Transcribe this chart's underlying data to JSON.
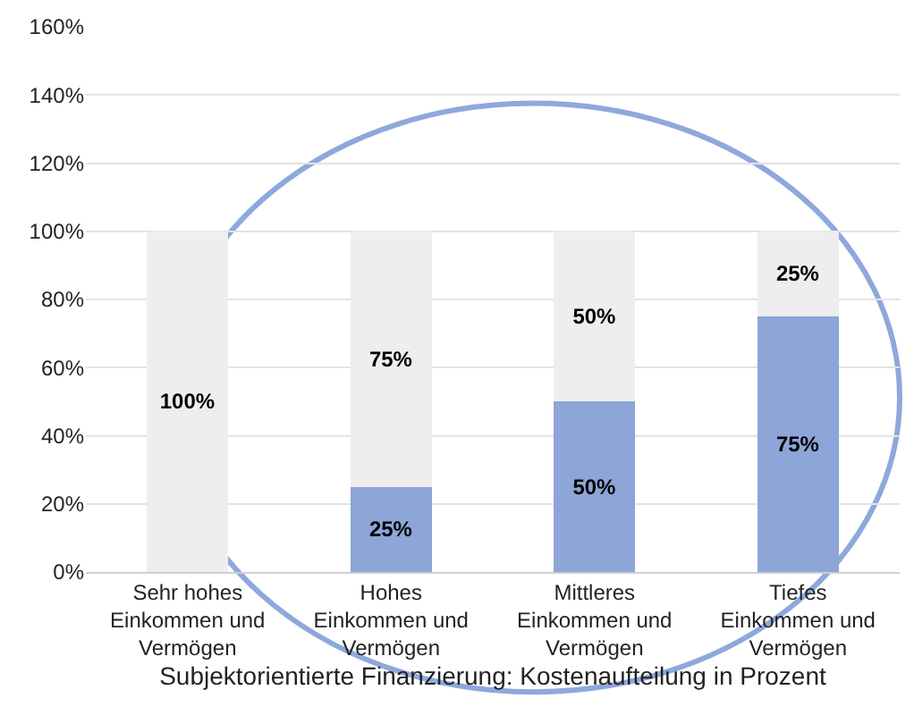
{
  "chart_data": {
    "type": "bar",
    "stacked": true,
    "xlabel": "Subjektorientierte Finanzierung: Kostenaufteilung in Prozent",
    "categories": [
      "Sehr hohes Einkommen und Vermögen",
      "Hohes Einkommen und Vermögen",
      "Mittleres Einkommen und Vermögen",
      "Tiefes Einkommen und Vermögen"
    ],
    "series": [
      {
        "color": "#8ea5d8",
        "values": [
          0,
          25,
          50,
          75
        ],
        "value_labels": [
          null,
          "25%",
          "50%",
          "75%"
        ]
      },
      {
        "color": "#eeeeee",
        "values": [
          100,
          75,
          50,
          25
        ],
        "value_labels": [
          "100%",
          "75%",
          "50%",
          "25%"
        ]
      }
    ],
    "ylim": [
      0,
      160
    ],
    "yticks": [
      {
        "value": 0,
        "label": "0%"
      },
      {
        "value": 20,
        "label": "20%"
      },
      {
        "value": 40,
        "label": "40%"
      },
      {
        "value": 60,
        "label": "60%"
      },
      {
        "value": 80,
        "label": "80%"
      },
      {
        "value": 100,
        "label": "100%"
      },
      {
        "value": 120,
        "label": "120%"
      },
      {
        "value": 140,
        "label": "140%"
      },
      {
        "value": 160,
        "label": "160%"
      }
    ],
    "grid": "y",
    "legend": false
  }
}
